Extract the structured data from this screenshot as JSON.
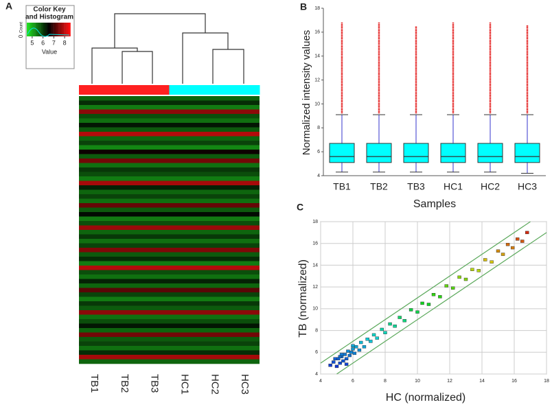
{
  "chart_data": [
    {
      "type": "heatmap",
      "label": "A",
      "columns": [
        "TB1",
        "TB2",
        "TB3",
        "HC1",
        "HC2",
        "HC3"
      ],
      "column_colors": [
        "#ff2020",
        "#ff2020",
        "#ff2020",
        "#00ffff",
        "#00ffff",
        "#00ffff"
      ],
      "values": [
        5.6,
        6.1,
        5.4,
        7.6,
        5.8,
        5.5,
        6.3,
        5.7,
        7.9,
        5.6,
        5.9,
        5.3,
        6.6,
        5.7,
        7.4,
        5.5,
        6.0,
        5.8,
        5.4,
        7.8,
        6.2,
        5.6,
        5.9,
        5.5,
        7.3,
        5.7,
        6.4,
        5.4,
        5.8,
        7.7,
        5.6,
        6.0,
        5.5,
        5.9,
        7.5,
        5.7,
        6.1,
        5.4,
        7.9,
        5.8,
        5.5,
        6.2,
        5.6,
        7.2,
        5.9,
        5.4,
        6.0,
        5.7,
        7.6,
        5.5,
        5.8,
        6.3,
        5.6,
        7.4,
        5.7,
        5.9,
        5.5,
        6.1,
        7.8,
        5.6
      ],
      "color_key": {
        "title": [
          "Color Key",
          "and Histogram"
        ],
        "xlabel": "Value",
        "ylabel": "Count",
        "xlim": [
          4.5,
          8.5
        ],
        "xticks": [
          5,
          6,
          7,
          8
        ],
        "yticks": [
          0
        ],
        "colors": [
          "#20e020",
          "#000000",
          "#ff1010"
        ]
      }
    },
    {
      "type": "box",
      "label": "B",
      "ylabel": "Normalized intensity values",
      "xlabel": "Samples",
      "categories": [
        "TB1",
        "TB2",
        "TB3",
        "HC1",
        "HC2",
        "HC3"
      ],
      "ylim": [
        4,
        18
      ],
      "yticks": [
        4,
        6,
        8,
        10,
        12,
        14,
        16,
        18
      ],
      "box_color": "#00ffff",
      "whisker_color": "#3333cc",
      "outlier_color": "#e00000",
      "boxes": [
        {
          "low": 4.3,
          "q1": 5.1,
          "median": 5.6,
          "q3": 6.7,
          "high": 9.1,
          "outlier_max": 16.8
        },
        {
          "low": 4.3,
          "q1": 5.1,
          "median": 5.6,
          "q3": 6.7,
          "high": 9.1,
          "outlier_max": 16.8
        },
        {
          "low": 4.3,
          "q1": 5.1,
          "median": 5.6,
          "q3": 6.7,
          "high": 9.1,
          "outlier_max": 16.5
        },
        {
          "low": 4.3,
          "q1": 5.1,
          "median": 5.6,
          "q3": 6.7,
          "high": 9.1,
          "outlier_max": 16.8
        },
        {
          "low": 4.3,
          "q1": 5.1,
          "median": 5.6,
          "q3": 6.7,
          "high": 9.1,
          "outlier_max": 16.8
        },
        {
          "low": 4.2,
          "q1": 5.1,
          "median": 5.6,
          "q3": 6.7,
          "high": 9.1,
          "outlier_max": 16.6
        }
      ]
    },
    {
      "type": "scatter",
      "label": "C",
      "xlabel": "HC (normalized)",
      "ylabel": "TB (normalized)",
      "xlim": [
        4,
        18
      ],
      "ylim": [
        4,
        18
      ],
      "xticks": [
        4,
        6,
        8,
        10,
        12,
        14,
        16,
        18
      ],
      "yticks": [
        4,
        6,
        8,
        10,
        12,
        14,
        16,
        18
      ],
      "grid": true,
      "guide_offsets": [
        1,
        -1
      ],
      "guide_color": "#5aa85a",
      "x": [
        4.6,
        4.8,
        5.0,
        5.1,
        5.2,
        5.3,
        5.4,
        5.5,
        5.6,
        5.7,
        5.8,
        5.9,
        6.0,
        6.1,
        6.2,
        6.4,
        6.5,
        6.7,
        6.9,
        7.1,
        7.3,
        7.5,
        7.8,
        8.0,
        8.3,
        8.6,
        8.9,
        9.2,
        9.6,
        10.0,
        10.3,
        10.7,
        11.0,
        11.4,
        11.8,
        12.2,
        12.6,
        13.0,
        13.4,
        13.8,
        14.2,
        14.6,
        15.0,
        15.3,
        15.6,
        15.9,
        16.2,
        16.5,
        16.8,
        5.2,
        5.6,
        6.0,
        4.9,
        5.3
      ],
      "y": [
        4.8,
        5.1,
        4.7,
        5.4,
        5.0,
        5.6,
        5.2,
        5.8,
        5.4,
        6.1,
        5.7,
        6.0,
        6.3,
        5.9,
        6.5,
        6.2,
        6.9,
        6.5,
        7.2,
        7.0,
        7.6,
        7.3,
        8.1,
        7.8,
        8.6,
        8.4,
        9.2,
        8.9,
        9.9,
        9.7,
        10.5,
        10.4,
        11.3,
        11.1,
        12.1,
        11.9,
        12.9,
        12.7,
        13.6,
        13.5,
        14.5,
        14.3,
        15.3,
        15.0,
        15.9,
        15.6,
        16.4,
        16.2,
        17.0,
        5.6,
        4.9,
        6.6,
        5.4,
        5.8
      ]
    }
  ]
}
